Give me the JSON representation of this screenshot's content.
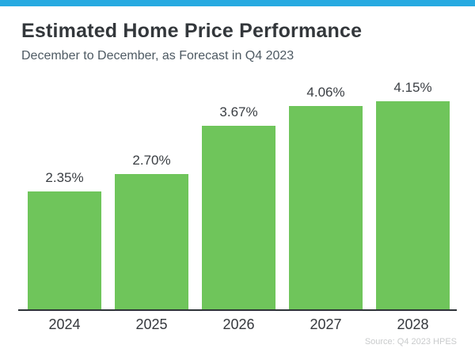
{
  "topbar": {
    "color": "#27AAE1"
  },
  "header": {
    "title": "Estimated Home Price Performance",
    "subtitle": "December to December, as Forecast in Q4 2023"
  },
  "chart_data": {
    "type": "bar",
    "title": "Estimated Home Price Performance",
    "subtitle": "December to December, as Forecast in Q4 2023",
    "categories": [
      "2024",
      "2025",
      "2026",
      "2027",
      "2028"
    ],
    "values": [
      2.35,
      2.7,
      3.67,
      4.06,
      4.15
    ],
    "value_labels": [
      "2.35%",
      "2.70%",
      "3.67%",
      "4.06%",
      "4.15%"
    ],
    "xlabel": "",
    "ylabel": "",
    "ylim": [
      0,
      4.5
    ],
    "grid": false,
    "legend": false,
    "value_label_position": "above-bar",
    "bar_color": "#6FC55B"
  },
  "footer": {
    "source": "Source: Q4 2023 HPES"
  }
}
